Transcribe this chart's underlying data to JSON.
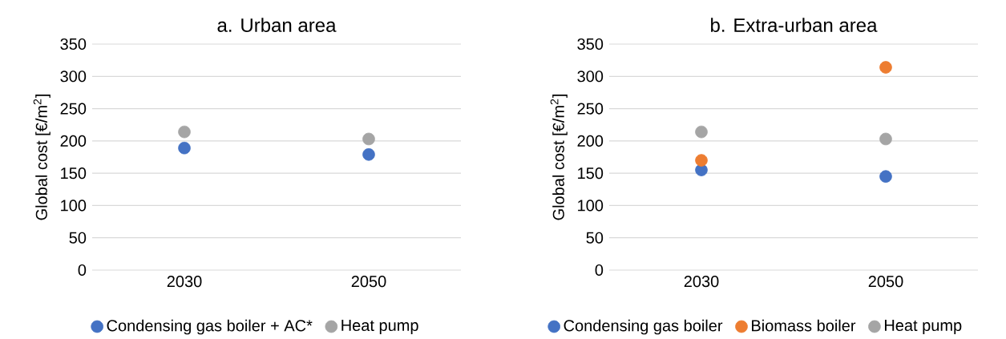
{
  "chart_data": [
    {
      "type": "scatter",
      "title": "a. Urban area",
      "ylabel": "Global cost [€/m$^{2}$]",
      "categories": [
        "2030",
        "2050"
      ],
      "ylim": [
        0,
        350
      ],
      "yticks": [
        0,
        50,
        100,
        150,
        200,
        250,
        300,
        350
      ],
      "grid": "y",
      "legend": "bottom",
      "marker": "circle",
      "series": [
        {
          "name": "Condensing gas boiler + AC*",
          "color": "#4472c4",
          "values": [
            189,
            179
          ]
        },
        {
          "name": "Heat pump",
          "color": "#a5a5a5",
          "values": [
            214,
            203
          ]
        }
      ]
    },
    {
      "type": "scatter",
      "title": "b. Extra-urban area",
      "ylabel": "Global cost [€/m$^{2}$]",
      "categories": [
        "2030",
        "2050"
      ],
      "ylim": [
        0,
        350
      ],
      "yticks": [
        0,
        50,
        100,
        150,
        200,
        250,
        300,
        350
      ],
      "grid": "y",
      "legend": "bottom",
      "marker": "circle",
      "series": [
        {
          "name": "Condensing gas boiler",
          "color": "#4472c4",
          "values": [
            155,
            145
          ]
        },
        {
          "name": "Biomass boiler",
          "color": "#ed7d31",
          "values": [
            170,
            314
          ]
        },
        {
          "name": "Heat pump",
          "color": "#a5a5a5",
          "values": [
            214,
            203
          ]
        }
      ]
    }
  ]
}
